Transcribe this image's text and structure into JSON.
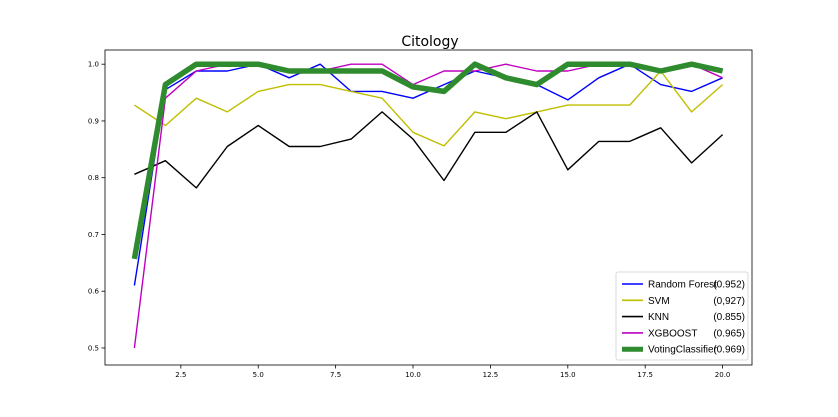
{
  "chart_data": {
    "type": "line",
    "title": "Citology",
    "xlabel": "",
    "ylabel": "",
    "xlim": [
      0.05,
      20.95
    ],
    "ylim": [
      0.47,
      1.025
    ],
    "x_ticks": [
      2.5,
      5.0,
      7.5,
      10.0,
      12.5,
      15.0,
      17.5,
      20.0
    ],
    "x_tick_labels": [
      "2.5",
      "5.0",
      "7.5",
      "10.0",
      "12.5",
      "15.0",
      "17.5",
      "20.0"
    ],
    "y_ticks": [
      0.5,
      0.6,
      0.7,
      0.8,
      0.9,
      1.0
    ],
    "y_tick_labels": [
      "0.5",
      "0.6",
      "0.7",
      "0.8",
      "0.9",
      "1.0"
    ],
    "grid": false,
    "legend_position": "lower-right",
    "x": [
      1,
      2,
      3,
      4,
      5,
      6,
      7,
      8,
      9,
      10,
      11,
      12,
      13,
      14,
      15,
      16,
      17,
      18,
      19,
      20
    ],
    "series": [
      {
        "name": "Random Forest",
        "score": "(0.952)",
        "color": "#0000ff",
        "width": "thin",
        "values": [
          0.61,
          0.955,
          0.988,
          0.988,
          1.0,
          0.976,
          1.0,
          0.952,
          0.952,
          0.94,
          0.964,
          0.988,
          0.976,
          0.964,
          0.937,
          0.976,
          1.0,
          0.964,
          0.952,
          0.976
        ]
      },
      {
        "name": "SVM",
        "score": "(0,927)",
        "color": "#bfbf00",
        "width": "thin",
        "values": [
          0.928,
          0.892,
          0.94,
          0.916,
          0.952,
          0.964,
          0.964,
          0.952,
          0.94,
          0.88,
          0.856,
          0.916,
          0.904,
          0.916,
          0.928,
          0.928,
          0.928,
          0.988,
          0.916,
          0.964
        ]
      },
      {
        "name": "KNN",
        "score": "(0.855)",
        "color": "#000000",
        "width": "thin",
        "values": [
          0.806,
          0.83,
          0.782,
          0.855,
          0.892,
          0.855,
          0.855,
          0.868,
          0.916,
          0.868,
          0.795,
          0.88,
          0.88,
          0.916,
          0.814,
          0.864,
          0.864,
          0.888,
          0.826,
          0.876
        ]
      },
      {
        "name": "XGBOOST",
        "score": "(0.965)",
        "color": "#bf00bf",
        "width": "thin",
        "values": [
          0.5,
          0.94,
          0.988,
          1.0,
          1.0,
          0.988,
          0.988,
          1.0,
          1.0,
          0.964,
          0.988,
          0.988,
          1.0,
          0.988,
          0.988,
          1.0,
          1.0,
          0.988,
          1.0,
          0.976
        ]
      },
      {
        "name": "VotingClassifier",
        "score": "(0.969)",
        "color": "#2e8b2e",
        "width": "thick",
        "values": [
          0.657,
          0.964,
          1.0,
          1.0,
          1.0,
          0.988,
          0.988,
          0.988,
          0.988,
          0.96,
          0.952,
          1.0,
          0.976,
          0.964,
          1.0,
          1.0,
          1.0,
          0.988,
          1.0,
          0.988
        ]
      }
    ]
  }
}
